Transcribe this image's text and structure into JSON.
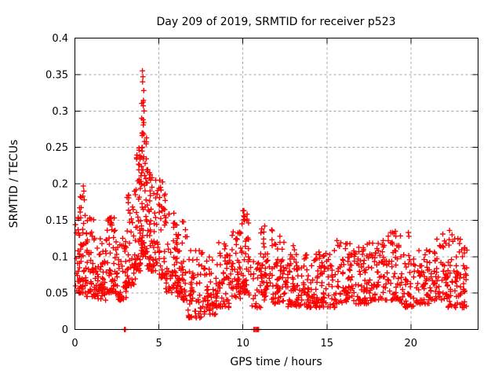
{
  "chart_data": {
    "type": "scatter",
    "title": "Day 209 of 2019, SRMTID for receiver p523",
    "xlabel": "GPS time / hours",
    "ylabel": "SRMTID / TECUs",
    "xlim": [
      0,
      24
    ],
    "ylim": [
      0,
      0.4
    ],
    "xticks": [
      0,
      5,
      10,
      15,
      20
    ],
    "yticks": [
      0,
      0.05,
      0.1,
      0.15,
      0.2,
      0.25,
      0.3,
      0.35,
      0.4
    ],
    "grid": true,
    "legend_position": "none",
    "marker": "plus",
    "colors": {
      "marker": "#ff0000",
      "grid": "#a6a6a6",
      "axis": "#000000",
      "background": "#ffffff",
      "text": "#000000"
    },
    "series_name": "SRMTID",
    "points_spec": {
      "comment": "Dense scatter (~1700 pts) captured as envelope bands [x_start,x_end,count,y_min,y_max,low_bias] plus explicit feature points [x,y] read from the plot.",
      "seed": 2019209,
      "bands": [
        [
          0.02,
          0.3,
          30,
          0.05,
          0.17,
          1.6
        ],
        [
          0.3,
          0.7,
          40,
          0.05,
          0.185,
          1.7
        ],
        [
          0.7,
          1.2,
          45,
          0.045,
          0.16,
          1.8
        ],
        [
          1.2,
          1.9,
          55,
          0.04,
          0.125,
          1.6
        ],
        [
          1.9,
          2.4,
          45,
          0.05,
          0.155,
          1.8
        ],
        [
          2.4,
          3.1,
          55,
          0.04,
          0.13,
          1.7
        ],
        [
          3.1,
          3.6,
          45,
          0.06,
          0.19,
          1.5
        ],
        [
          3.6,
          3.95,
          45,
          0.08,
          0.25,
          1.7
        ],
        [
          3.95,
          4.3,
          60,
          0.1,
          0.34,
          1.6
        ],
        [
          4.3,
          4.8,
          50,
          0.08,
          0.225,
          1.6
        ],
        [
          4.8,
          5.4,
          50,
          0.07,
          0.21,
          1.7
        ],
        [
          5.4,
          6.1,
          55,
          0.05,
          0.16,
          1.6
        ],
        [
          6.1,
          6.7,
          50,
          0.04,
          0.15,
          1.7
        ],
        [
          6.7,
          7.6,
          55,
          0.015,
          0.11,
          1.5
        ],
        [
          7.6,
          8.4,
          50,
          0.02,
          0.1,
          1.5
        ],
        [
          8.4,
          9.3,
          60,
          0.03,
          0.12,
          1.6
        ],
        [
          9.3,
          9.85,
          45,
          0.04,
          0.135,
          1.6
        ],
        [
          9.85,
          10.35,
          50,
          0.05,
          0.165,
          1.7
        ],
        [
          10.35,
          11.05,
          25,
          0.03,
          0.1,
          1.5
        ],
        [
          11.05,
          11.8,
          55,
          0.04,
          0.14,
          1.7
        ],
        [
          11.8,
          12.6,
          55,
          0.035,
          0.125,
          1.7
        ],
        [
          12.6,
          13.5,
          60,
          0.03,
          0.11,
          1.6
        ],
        [
          13.5,
          14.5,
          62,
          0.03,
          0.105,
          1.6
        ],
        [
          14.5,
          15.5,
          62,
          0.03,
          0.11,
          1.6
        ],
        [
          15.5,
          16.5,
          62,
          0.035,
          0.12,
          1.7
        ],
        [
          16.5,
          17.5,
          62,
          0.035,
          0.115,
          1.7
        ],
        [
          17.5,
          18.5,
          62,
          0.04,
          0.125,
          1.7
        ],
        [
          18.5,
          19.4,
          55,
          0.04,
          0.135,
          1.7
        ],
        [
          19.4,
          20.3,
          45,
          0.03,
          0.105,
          1.6
        ],
        [
          20.3,
          21.2,
          55,
          0.035,
          0.11,
          1.6
        ],
        [
          21.2,
          22.2,
          60,
          0.04,
          0.125,
          1.7
        ],
        [
          22.2,
          23.35,
          75,
          0.03,
          0.125,
          1.6
        ]
      ],
      "extra_points": [
        [
          0.5,
          0.197
        ],
        [
          0.53,
          0.19
        ],
        [
          0.47,
          0.183
        ],
        [
          0.56,
          0.178
        ],
        [
          2.1,
          0.152
        ],
        [
          2.15,
          0.147
        ],
        [
          2.95,
          0.0
        ],
        [
          3.0,
          0.0
        ],
        [
          3.55,
          0.19
        ],
        [
          3.6,
          0.185
        ],
        [
          4.02,
          0.355
        ],
        [
          4.05,
          0.347
        ],
        [
          4.03,
          0.34
        ],
        [
          4.1,
          0.328
        ],
        [
          4.07,
          0.312
        ],
        [
          4.12,
          0.3
        ],
        [
          4.06,
          0.288
        ],
        [
          4.1,
          0.284
        ],
        [
          4.04,
          0.27
        ],
        [
          4.14,
          0.258
        ],
        [
          4.0,
          0.245
        ],
        [
          4.1,
          0.237
        ],
        [
          4.18,
          0.228
        ],
        [
          3.97,
          0.215
        ],
        [
          4.22,
          0.207
        ],
        [
          4.45,
          0.215
        ],
        [
          4.5,
          0.205
        ],
        [
          5.05,
          0.205
        ],
        [
          5.1,
          0.195
        ],
        [
          6.4,
          0.148
        ],
        [
          10.0,
          0.163
        ],
        [
          10.05,
          0.156
        ],
        [
          10.1,
          0.15
        ],
        [
          9.95,
          0.145
        ],
        [
          10.65,
          0.0
        ],
        [
          10.72,
          0.0
        ],
        [
          10.8,
          0.0
        ],
        [
          10.87,
          0.0
        ],
        [
          10.93,
          0.0
        ],
        [
          11.3,
          0.142
        ],
        [
          12.2,
          0.128
        ],
        [
          13.0,
          0.115
        ],
        [
          15.6,
          0.122
        ],
        [
          16.2,
          0.118
        ],
        [
          17.4,
          0.117
        ],
        [
          18.35,
          0.122
        ],
        [
          19.0,
          0.132
        ],
        [
          19.1,
          0.128
        ],
        [
          19.85,
          0.133
        ],
        [
          19.88,
          0.128
        ],
        [
          21.55,
          0.124
        ],
        [
          21.9,
          0.131
        ],
        [
          22.3,
          0.136
        ],
        [
          22.45,
          0.13
        ],
        [
          22.9,
          0.118
        ]
      ]
    }
  }
}
